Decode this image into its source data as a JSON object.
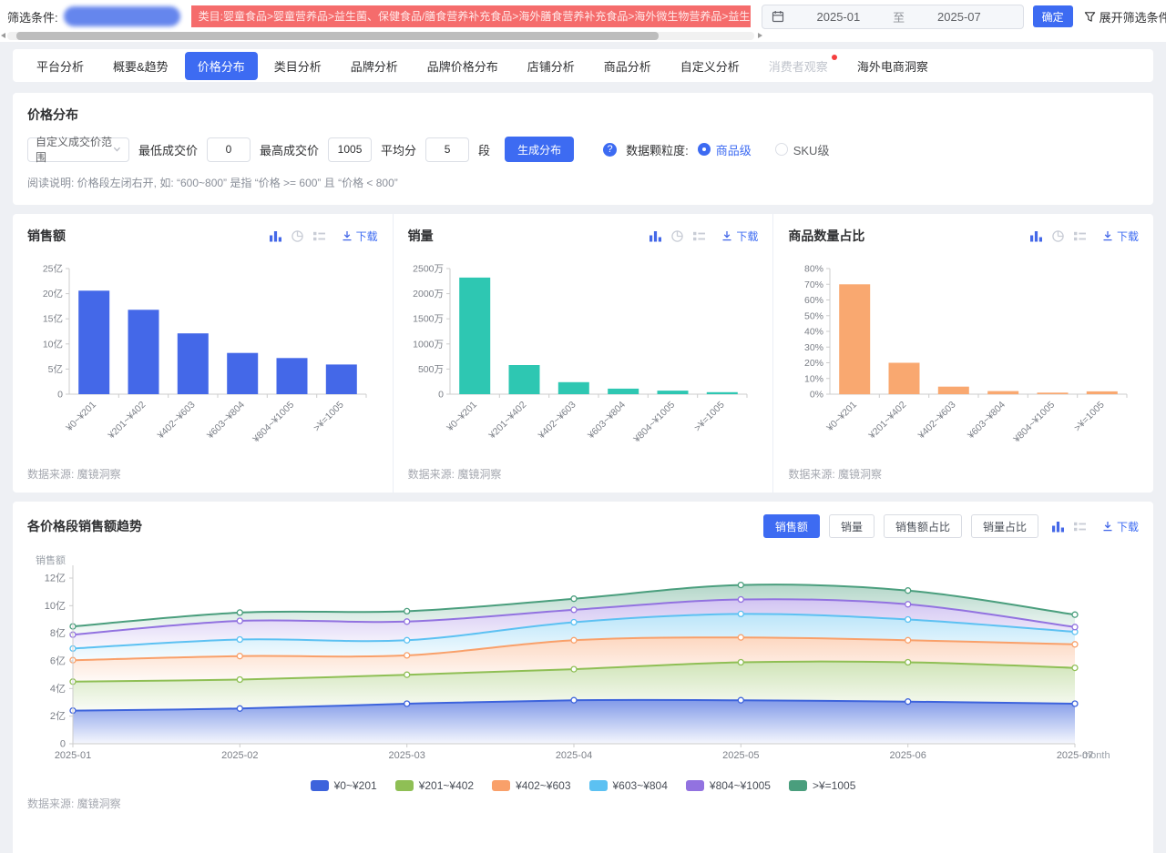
{
  "colors": {
    "primary": "#3D6BF2",
    "icon_active": "#4468E8",
    "icon_inactive": "#c9cdd6",
    "banner_bg": "#F56C6C"
  },
  "filter_bar": {
    "label": "筛选条件:",
    "category_banner": "类目:婴童食品>婴童营养品>益生菌、保健食品/膳食营养补充食品>海外膳食营养补充食品>海外微生物营养品>益生菌、保健食品/膳食营养补充食品>普通膳食营养",
    "date_start": "2025-01",
    "date_separator": "至",
    "date_end": "2025-07",
    "confirm_label": "确定",
    "expand_label": "展开筛选条件"
  },
  "tabs": [
    {
      "label": "平台分析",
      "state": "normal"
    },
    {
      "label": "概要&趋势",
      "state": "normal"
    },
    {
      "label": "价格分布",
      "state": "active"
    },
    {
      "label": "类目分析",
      "state": "normal"
    },
    {
      "label": "品牌分析",
      "state": "normal"
    },
    {
      "label": "品牌价格分布",
      "state": "normal"
    },
    {
      "label": "店铺分析",
      "state": "normal"
    },
    {
      "label": "商品分析",
      "state": "normal"
    },
    {
      "label": "自定义分析",
      "state": "normal"
    },
    {
      "label": "消费者观察",
      "state": "disabled",
      "dot": true
    },
    {
      "label": "海外电商洞察",
      "state": "normal"
    }
  ],
  "controls": {
    "section_title": "价格分布",
    "range_select": "自定义成交价范围",
    "min_label": "最低成交价",
    "min_value": "0",
    "max_label": "最高成交价",
    "max_value": "1005",
    "split_label": "平均分",
    "split_value": "5",
    "split_unit": "段",
    "generate_label": "生成分布",
    "help_glyph": "?",
    "granularity_label": "数据颗粒度:",
    "granularity_options": [
      {
        "label": "商品级",
        "selected": true
      },
      {
        "label": "SKU级",
        "selected": false
      }
    ],
    "note": "阅读说明: 价格段左闭右开, 如: “600~800” 是指 “价格 >= 600” 且 “价格 < 800”"
  },
  "charts_common": {
    "download_label": "下载",
    "datasource": "数据来源: 魔镜洞察"
  },
  "trend": {
    "title": "各价格段销售额趋势",
    "toggle_buttons": [
      {
        "label": "销售额",
        "active": true
      },
      {
        "label": "销量",
        "active": false
      },
      {
        "label": "销售额占比",
        "active": false
      },
      {
        "label": "销量占比",
        "active": false
      }
    ]
  },
  "chart_data": [
    {
      "type": "bar",
      "title": "销售额",
      "categories": [
        "¥0~¥201",
        "¥201~¥402",
        "¥402~¥603",
        "¥603~¥804",
        "¥804~¥1005",
        ">¥=1005"
      ],
      "values": [
        20.6,
        16.8,
        12.1,
        8.2,
        7.2,
        5.9
      ],
      "unit": "亿",
      "ylim": [
        0,
        25
      ],
      "ytick_labels": [
        "0",
        "5亿",
        "10亿",
        "15亿",
        "20亿",
        "25亿"
      ],
      "color": "#4468E8"
    },
    {
      "type": "bar",
      "title": "销量",
      "categories": [
        "¥0~¥201",
        "¥201~¥402",
        "¥402~¥603",
        "¥603~¥804",
        "¥804~¥1005",
        ">¥=1005"
      ],
      "values": [
        2320,
        580,
        240,
        110,
        70,
        40
      ],
      "unit": "万",
      "ylim": [
        0,
        2500
      ],
      "ytick_labels": [
        "0",
        "500万",
        "1000万",
        "1500万",
        "2000万",
        "2500万"
      ],
      "color": "#2EC7B2"
    },
    {
      "type": "bar",
      "title": "商品数量占比",
      "categories": [
        "¥0~¥201",
        "¥201~¥402",
        "¥402~¥603",
        "¥603~¥804",
        "¥804~¥1005",
        ">¥=1005"
      ],
      "values": [
        70,
        20,
        4.8,
        2,
        1,
        1.8
      ],
      "unit": "%",
      "ylim": [
        0,
        80
      ],
      "ytick_labels": [
        "0%",
        "10%",
        "20%",
        "30%",
        "40%",
        "50%",
        "60%",
        "70%",
        "80%"
      ],
      "color": "#F9A870"
    },
    {
      "type": "area",
      "title": "各价格段销售额趋势",
      "stacked": true,
      "x": [
        "2025-01",
        "2025-02",
        "2025-03",
        "2025-04",
        "2025-05",
        "2025-06",
        "2025-07"
      ],
      "xlabel": "month",
      "ylabel": "销售额",
      "ylim": [
        0,
        12
      ],
      "ytick_labels": [
        "0",
        "2亿",
        "4亿",
        "6亿",
        "8亿",
        "10亿",
        "12亿"
      ],
      "series": [
        {
          "name": "¥0~¥201",
          "color": "#3D63DC",
          "values": [
            2.4,
            2.55,
            2.9,
            3.15,
            3.15,
            3.05,
            2.9
          ]
        },
        {
          "name": "¥201~¥402",
          "color": "#8FBF55",
          "values": [
            2.1,
            2.1,
            2.1,
            2.25,
            2.75,
            2.85,
            2.6
          ]
        },
        {
          "name": "¥402~¥603",
          "color": "#F9A06A",
          "values": [
            1.55,
            1.7,
            1.4,
            2.1,
            1.8,
            1.6,
            1.7
          ]
        },
        {
          "name": "¥603~¥804",
          "color": "#5CC1F2",
          "values": [
            0.85,
            1.2,
            1.1,
            1.3,
            1.7,
            1.5,
            0.9
          ]
        },
        {
          "name": "¥804~¥1005",
          "color": "#9272E0",
          "values": [
            1.0,
            1.35,
            1.35,
            0.9,
            1.05,
            1.1,
            0.35
          ]
        },
        {
          "name": ">¥=1005",
          "color": "#4A9E7D",
          "values": [
            0.6,
            0.6,
            0.75,
            0.8,
            1.05,
            1.0,
            0.9
          ]
        }
      ]
    }
  ]
}
